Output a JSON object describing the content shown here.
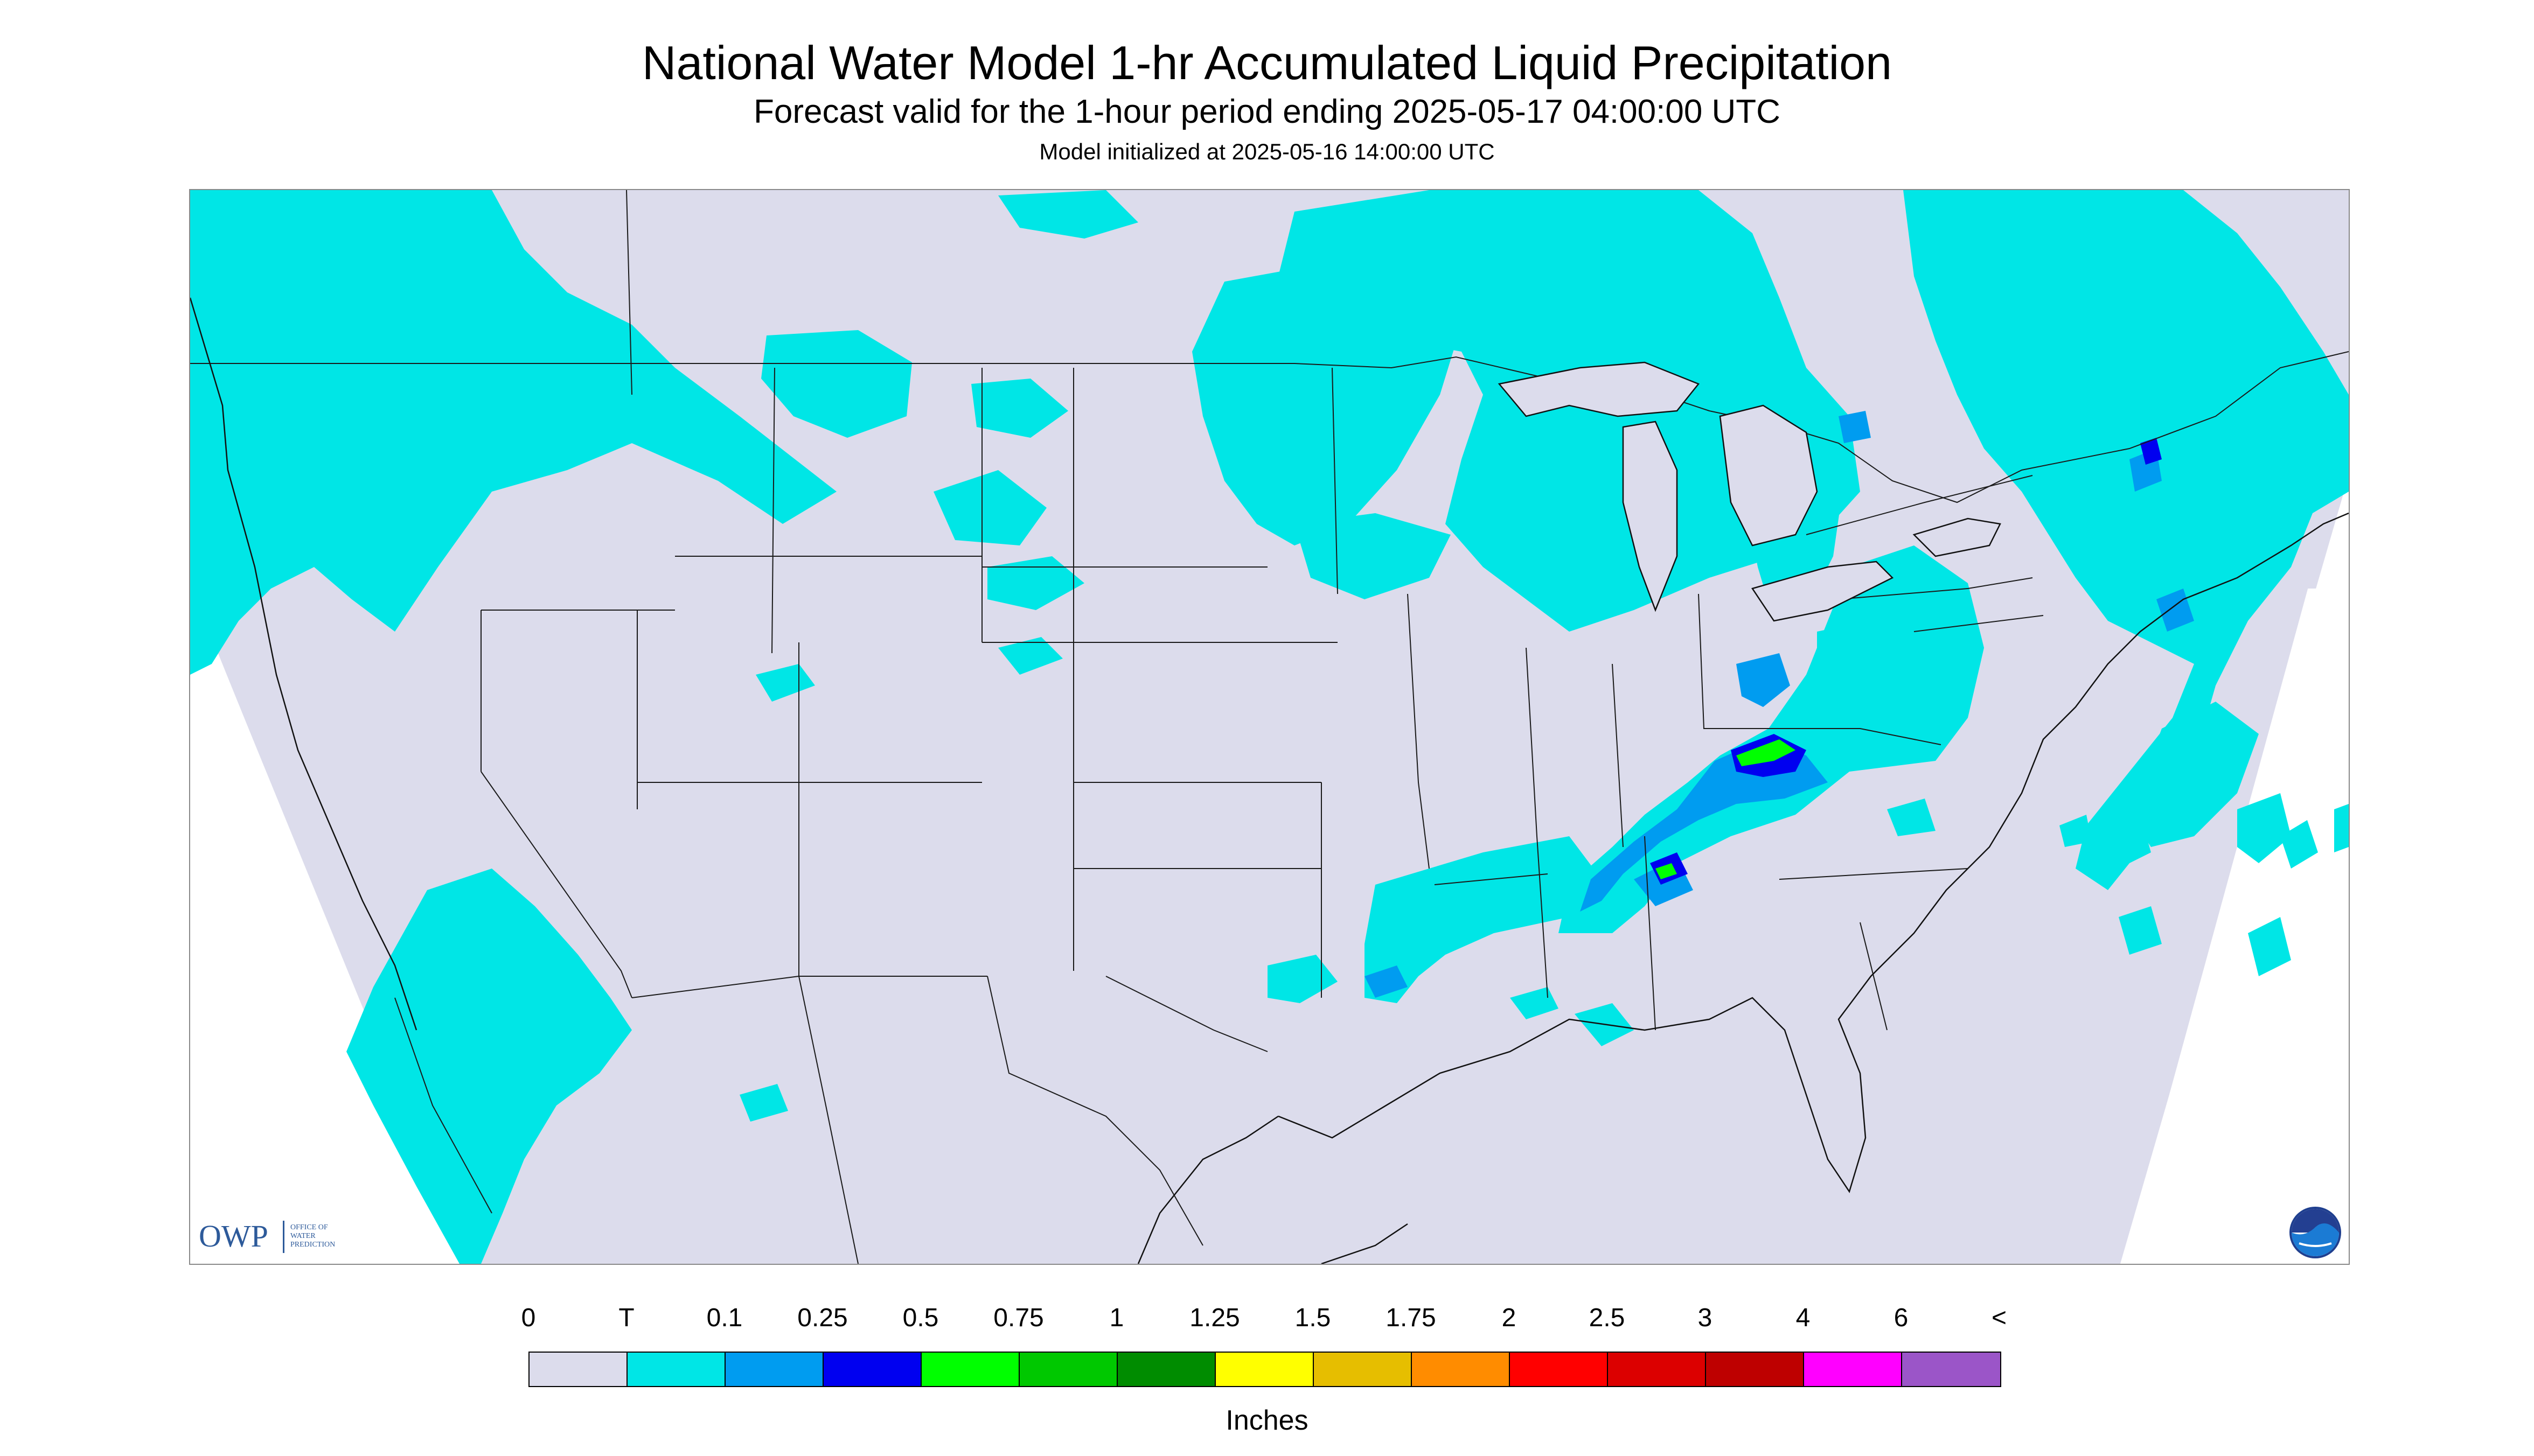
{
  "header": {
    "title": "National Water Model 1-hr Accumulated Liquid Precipitation",
    "subtitle": "Forecast valid for the 1-hour period ending 2025-05-17 04:00:00 UTC",
    "init_line": "Model initialized at 2025-05-16 14:00:00 UTC"
  },
  "map": {
    "domain_fill": "#dcdcec",
    "outside_fill": "#ffffff",
    "border_color": "#1a1a1a",
    "owp_logo": {
      "word": "OWP",
      "sub": [
        "OFFICE OF",
        "WATER",
        "PREDICTION"
      ]
    },
    "noaa_logo": {
      "icon": "noaa-logo-icon"
    }
  },
  "legend": {
    "labels": [
      "0",
      "T",
      "0.1",
      "0.25",
      "0.5",
      "0.75",
      "1",
      "1.25",
      "1.5",
      "1.75",
      "2",
      "2.5",
      "3",
      "4",
      "6",
      "<"
    ],
    "colors": [
      "#dcdcec",
      "#00e6e6",
      "#009cf0",
      "#0000f0",
      "#00ff00",
      "#00c800",
      "#008c00",
      "#ffff00",
      "#e6be00",
      "#ff8c00",
      "#ff0000",
      "#dc0000",
      "#be0000",
      "#ff00ff",
      "#9b55c8"
    ],
    "units": "Inches"
  }
}
